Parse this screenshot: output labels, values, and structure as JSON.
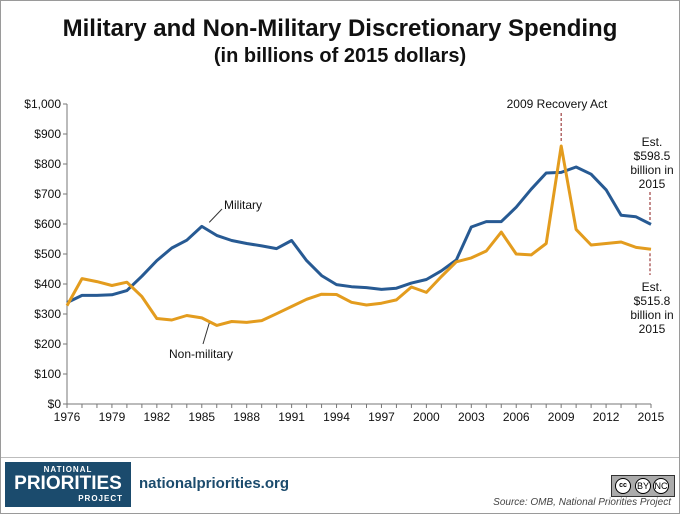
{
  "title": "Military and Non-Military Discretionary Spending",
  "subtitle": "(in billions of 2015 dollars)",
  "chart_data": {
    "type": "line",
    "x": [
      1976,
      1977,
      1978,
      1979,
      1980,
      1981,
      1982,
      1983,
      1984,
      1985,
      1986,
      1987,
      1988,
      1989,
      1990,
      1991,
      1992,
      1993,
      1994,
      1995,
      1996,
      1997,
      1998,
      1999,
      2000,
      2001,
      2002,
      2003,
      2004,
      2005,
      2006,
      2007,
      2008,
      2009,
      2010,
      2011,
      2012,
      2013,
      2014,
      2015
    ],
    "x_ticks": [
      "1976",
      "1979",
      "1982",
      "1985",
      "1988",
      "1991",
      "1994",
      "1997",
      "2000",
      "2003",
      "2006",
      "2009",
      "2012",
      "2015"
    ],
    "y_ticks": [
      "$0",
      "$100",
      "$200",
      "$300",
      "$400",
      "$500",
      "$600",
      "$700",
      "$800",
      "$900",
      "$1,000"
    ],
    "ylim": [
      0,
      1000
    ],
    "series": [
      {
        "name": "Military",
        "color": "#275a93",
        "values": [
          338,
          362,
          362,
          364,
          378,
          426,
          478,
          520,
          546,
          592,
          562,
          545,
          535,
          527,
          518,
          545,
          478,
          428,
          398,
          391,
          388,
          382,
          386,
          403,
          415,
          444,
          480,
          590,
          608,
          608,
          656,
          716,
          770,
          772,
          790,
          766,
          714,
          629,
          624,
          598.5
        ]
      },
      {
        "name": "Non-military",
        "color": "#e39c1e",
        "values": [
          328,
          418,
          408,
          395,
          406,
          358,
          285,
          280,
          295,
          287,
          262,
          275,
          272,
          278,
          301,
          325,
          349,
          366,
          365,
          339,
          330,
          336,
          347,
          390,
          372,
          425,
          474,
          487,
          510,
          573,
          500,
          497,
          535,
          860,
          582,
          530,
          535,
          540,
          522,
          515.8
        ]
      }
    ],
    "annotations": {
      "military": "Military",
      "non_military": "Non-military",
      "recovery": "2009 Recovery Act",
      "est_military": [
        "Est.",
        "$598.5",
        "billion in",
        "2015"
      ],
      "est_non_military": [
        "Est.",
        "$515.8",
        "billion in",
        "2015"
      ]
    },
    "grid": false,
    "legend": "none"
  },
  "footer": {
    "logo_top": "NATIONAL",
    "logo_main": "PRIORITIES",
    "logo_bottom": "PROJECT",
    "website": "nationalpriorities.org",
    "license_cc": "cc",
    "license_by": "BY",
    "license_nc": "NC",
    "source": "Source: OMB, National Priorities Project"
  }
}
